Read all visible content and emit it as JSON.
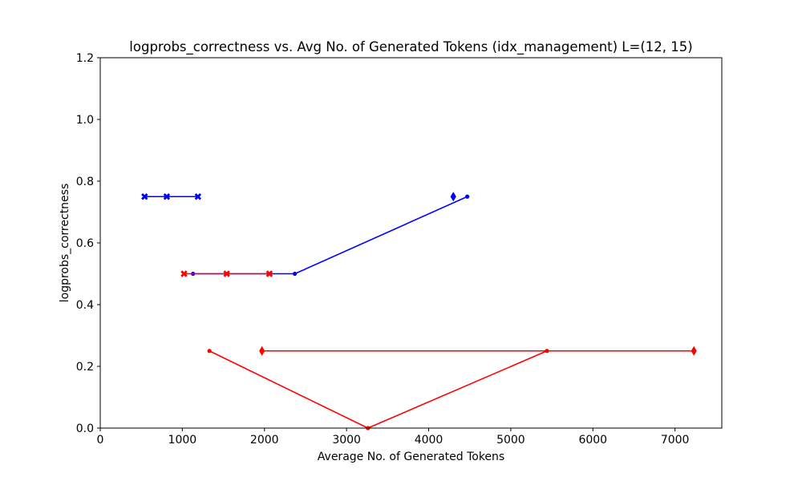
{
  "chart_data": {
    "type": "line",
    "title": "logprobs_correctness vs. Avg No. of Generated Tokens (idx_management) L=(12, 15)",
    "xlabel": "Average No. of Generated Tokens",
    "ylabel": "logprobs_correctness",
    "xlim": [
      0,
      7570
    ],
    "ylim": [
      0,
      1.2
    ],
    "xticks": [
      0,
      1000,
      2000,
      3000,
      4000,
      5000,
      6000,
      7000
    ],
    "yticks": [
      0.0,
      0.2,
      0.4,
      0.6,
      0.8,
      1.0,
      1.2
    ],
    "xtick_labels": [
      "0",
      "1000",
      "2000",
      "3000",
      "4000",
      "5000",
      "6000",
      "7000"
    ],
    "ytick_labels": [
      "0.0",
      "0.2",
      "0.4",
      "0.6",
      "0.8",
      "1.0",
      "1.2"
    ],
    "grid": false,
    "series": [
      {
        "color": "#0000ff",
        "marker": "x",
        "x": [
          540,
          810,
          1190
        ],
        "y": [
          0.75,
          0.75,
          0.75
        ]
      },
      {
        "color": "#0000ff",
        "marker": "dot",
        "x": [
          1130,
          2370,
          4470
        ],
        "y": [
          0.5,
          0.5,
          0.75
        ]
      },
      {
        "color": "#0000ff",
        "marker": "diamond",
        "x": [
          4300
        ],
        "y": [
          0.75
        ]
      },
      {
        "color": "#ff0000",
        "marker": "x",
        "x": [
          1020,
          1540,
          2060
        ],
        "y": [
          0.5,
          0.5,
          0.5
        ]
      },
      {
        "color": "#ff0000",
        "marker": "dot",
        "x": [
          1330,
          3260,
          5440
        ],
        "y": [
          0.25,
          0.0,
          0.25
        ]
      },
      {
        "color": "#ff0000",
        "marker": "diamond",
        "x": [
          1970,
          7230
        ],
        "y": [
          0.25,
          0.25
        ]
      }
    ]
  }
}
